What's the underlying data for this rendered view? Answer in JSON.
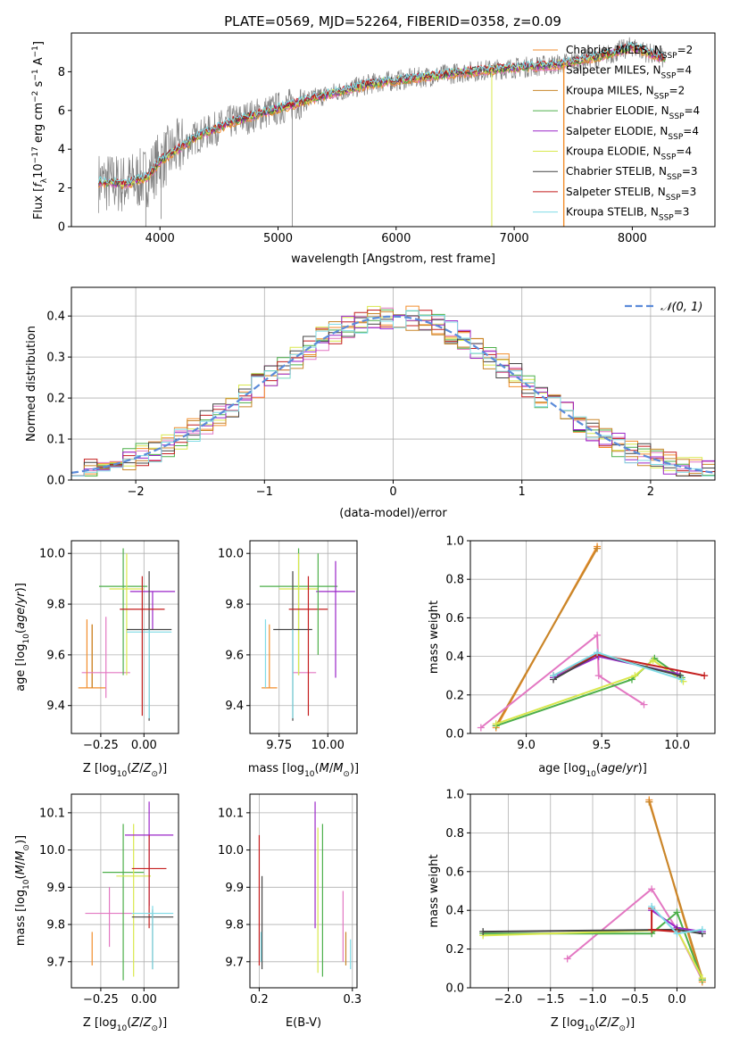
{
  "figure": {
    "title": "PLATE=0569, MJD=52264, FIBERID=0358, z=0.09"
  },
  "models": [
    {
      "name": "Chabrier MILES",
      "nssp": "2",
      "color": "#f28e2c"
    },
    {
      "name": "Salpeter MILES",
      "nssp": "4",
      "color": "#e377c2"
    },
    {
      "name": "Kroupa MILES",
      "nssp": "2",
      "color": "#c8862a"
    },
    {
      "name": "Chabrier ELODIE",
      "nssp": "4",
      "color": "#4daf4a"
    },
    {
      "name": "Salpeter ELODIE",
      "nssp": "4",
      "color": "#9b26c9"
    },
    {
      "name": "Kroupa ELODIE",
      "nssp": "4",
      "color": "#d9e84d"
    },
    {
      "name": "Chabrier STELIB",
      "nssp": "3",
      "color": "#444444"
    },
    {
      "name": "Salpeter STELIB",
      "nssp": "3",
      "color": "#c41e1e"
    },
    {
      "name": "Kroupa STELIB",
      "nssp": "3",
      "color": "#7fdbe6"
    }
  ],
  "chart_data": [
    {
      "id": "spectrum",
      "type": "line",
      "xlabel": "wavelength [Angstrom, rest frame]",
      "ylabel": "Flux [f_λ10^-17 erg cm^-2 s^-1 A^-1]",
      "xlim": [
        3250,
        8700
      ],
      "ylim": [
        0,
        10
      ],
      "xticks": [
        4000,
        5000,
        6000,
        7000,
        8000
      ],
      "yticks": [
        0,
        2,
        4,
        6,
        8
      ],
      "grid": false,
      "legend": "right",
      "data_color": "#808080",
      "continuum_points": {
        "x": [
          3500,
          3700,
          3900,
          4000,
          4300,
          4600,
          5000,
          5400,
          5800,
          6200,
          6600,
          7000,
          7400,
          7800,
          8000,
          8250
        ],
        "y": [
          2.3,
          2.2,
          2.6,
          3.4,
          4.6,
          5.4,
          6.1,
          6.8,
          7.4,
          7.7,
          8.0,
          8.2,
          8.4,
          8.9,
          9.3,
          8.7
        ]
      }
    },
    {
      "id": "residuals",
      "type": "step",
      "xlabel": "(data-model)/error",
      "ylabel": "Normed distribution",
      "xlim": [
        -2.5,
        2.5
      ],
      "ylim": [
        0,
        0.47
      ],
      "xticks": [
        -2,
        -1,
        0,
        1,
        2
      ],
      "yticks": [
        0.0,
        0.1,
        0.2,
        0.3,
        0.4
      ],
      "grid": true,
      "legend": "top-right",
      "reference_curve": {
        "name": "N(0,1)",
        "color": "#5b8bd9"
      },
      "bin_width": 0.1
    },
    {
      "id": "age-vs-Z",
      "type": "errorbar",
      "xlabel": "Z [log10(Z/Z⊙)]",
      "ylabel": "age [log10(age/yr)]",
      "xlim": [
        -0.42,
        0.2
      ],
      "ylim": [
        9.29,
        10.05
      ],
      "xticks": [
        -0.25,
        0.0
      ],
      "yticks": [
        9.4,
        9.6,
        9.8,
        10.0
      ],
      "grid": true,
      "points": [
        {
          "model": 0,
          "x": -0.3,
          "y": 9.47,
          "xerr": 0.08,
          "yerr": [
            9.47,
            9.72
          ]
        },
        {
          "model": 2,
          "x": -0.3,
          "y": 9.47,
          "xerr": 0.0,
          "yerr": [
            9.47,
            9.72
          ]
        },
        {
          "model": 1,
          "x": -0.22,
          "y": 9.53,
          "xerr": 0.14,
          "yerr": [
            9.43,
            9.75
          ]
        },
        {
          "model": 3,
          "x": -0.12,
          "y": 9.87,
          "xerr": 0.14,
          "yerr": [
            9.52,
            10.02
          ]
        },
        {
          "model": 5,
          "x": -0.1,
          "y": 9.86,
          "xerr": 0.1,
          "yerr": [
            9.52,
            10.0
          ]
        },
        {
          "model": 4,
          "x": 0.05,
          "y": 9.85,
          "xerr": 0.13,
          "yerr": [
            9.7,
            9.85
          ]
        },
        {
          "model": 6,
          "x": 0.03,
          "y": 9.7,
          "xerr": 0.13,
          "yerr": [
            9.34,
            9.93
          ]
        },
        {
          "model": 8,
          "x": 0.03,
          "y": 9.69,
          "xerr": 0.13,
          "yerr": [
            9.35,
            9.7
          ]
        },
        {
          "model": 7,
          "x": -0.01,
          "y": 9.78,
          "xerr": 0.13,
          "yerr": [
            9.36,
            9.91
          ]
        },
        {
          "model": 0,
          "x": -0.33,
          "y": 9.66,
          "xerr": 0.0,
          "yerr": [
            9.47,
            9.74
          ]
        }
      ]
    },
    {
      "id": "age-vs-mass",
      "type": "errorbar",
      "xlabel": "mass [log10(M/M⊙)]",
      "ylabel": "",
      "xlim": [
        9.6,
        10.15
      ],
      "ylim": [
        9.29,
        10.05
      ],
      "xticks": [
        9.75,
        10.0
      ],
      "yticks": [
        9.4,
        9.6,
        9.8,
        10.0
      ],
      "grid": true,
      "points": [
        {
          "model": 0,
          "x": 9.7,
          "y": 9.47,
          "xerr": 0.04,
          "yerr": [
            9.47,
            9.72
          ]
        },
        {
          "model": 8,
          "x": 9.68,
          "y": 9.7,
          "xerr": 0.0,
          "yerr": [
            9.47,
            9.74
          ]
        },
        {
          "model": 1,
          "x": 9.88,
          "y": 9.53,
          "xerr": 0.06,
          "yerr": [
            9.53,
            9.53
          ]
        },
        {
          "model": 3,
          "x": 9.85,
          "y": 9.87,
          "xerr": 0.2,
          "yerr": [
            9.52,
            10.02
          ]
        },
        {
          "model": 5,
          "x": 9.85,
          "y": 9.86,
          "xerr": 0.1,
          "yerr": [
            9.52,
            10.0
          ]
        },
        {
          "model": 4,
          "x": 10.04,
          "y": 9.85,
          "xerr": 0.1,
          "yerr": [
            9.51,
            9.97
          ]
        },
        {
          "model": 6,
          "x": 9.82,
          "y": 9.7,
          "xerr": 0.1,
          "yerr": [
            9.34,
            9.93
          ]
        },
        {
          "model": 8,
          "x": 9.82,
          "y": 9.69,
          "xerr": 0.0,
          "yerr": [
            9.35,
            9.7
          ]
        },
        {
          "model": 7,
          "x": 9.9,
          "y": 9.78,
          "xerr": 0.1,
          "yerr": [
            9.36,
            9.91
          ]
        },
        {
          "model": 3,
          "x": 9.95,
          "y": 9.86,
          "xerr": 0.0,
          "yerr": [
            9.6,
            10.0
          ]
        }
      ]
    },
    {
      "id": "weight-vs-age",
      "type": "line",
      "xlabel": "age [log10(age/yr)]",
      "ylabel": "mass weight",
      "xlim": [
        8.63,
        10.25
      ],
      "ylim": [
        0,
        1
      ],
      "xticks": [
        9.0,
        9.5,
        10.0
      ],
      "yticks": [
        0.0,
        0.2,
        0.4,
        0.6,
        0.8,
        1.0
      ],
      "grid": true,
      "series": [
        {
          "model": 0,
          "x": [
            8.8,
            9.47
          ],
          "y": [
            0.03,
            0.97
          ]
        },
        {
          "model": 2,
          "x": [
            8.8,
            9.47
          ],
          "y": [
            0.04,
            0.96
          ]
        },
        {
          "model": 1,
          "x": [
            8.7,
            9.47,
            9.48,
            9.78
          ],
          "y": [
            0.03,
            0.51,
            0.3,
            0.15
          ]
        },
        {
          "model": 3,
          "x": [
            8.8,
            9.7,
            9.85,
            10.03
          ],
          "y": [
            0.04,
            0.28,
            0.39,
            0.29
          ]
        },
        {
          "model": 5,
          "x": [
            8.8,
            9.72,
            9.84,
            10.04
          ],
          "y": [
            0.05,
            0.3,
            0.38,
            0.27
          ]
        },
        {
          "model": 4,
          "x": [
            9.18,
            9.48,
            10.0
          ],
          "y": [
            0.29,
            0.4,
            0.31
          ]
        },
        {
          "model": 6,
          "x": [
            9.18,
            9.47,
            10.02
          ],
          "y": [
            0.28,
            0.41,
            0.3
          ]
        },
        {
          "model": 7,
          "x": [
            9.18,
            9.47,
            10.18
          ],
          "y": [
            0.3,
            0.41,
            0.3
          ]
        },
        {
          "model": 8,
          "x": [
            9.18,
            9.47,
            10.03
          ],
          "y": [
            0.3,
            0.42,
            0.28
          ]
        }
      ]
    },
    {
      "id": "mass-vs-Z",
      "type": "errorbar",
      "xlabel": "Z [log10(Z/Z⊙)]",
      "ylabel": "mass [log10(M/M⊙)]",
      "xlim": [
        -0.42,
        0.2
      ],
      "ylim": [
        9.63,
        10.15
      ],
      "xticks": [
        -0.25,
        0.0
      ],
      "yticks": [
        9.7,
        9.8,
        9.9,
        10.0,
        10.1
      ],
      "grid": true,
      "points": [
        {
          "model": 0,
          "x": -0.3,
          "y": 9.69,
          "xerr": 0.0,
          "yerr": [
            9.69,
            9.78
          ]
        },
        {
          "model": 2,
          "x": -0.33,
          "y": 9.69,
          "xerr": 0.0,
          "yerr": [
            9.69,
            9.69
          ]
        },
        {
          "model": 8,
          "x": -0.33,
          "y": 9.68,
          "xerr": 0.0,
          "yerr": [
            9.68,
            9.68
          ]
        },
        {
          "model": 1,
          "x": -0.2,
          "y": 9.83,
          "xerr": 0.14,
          "yerr": [
            9.74,
            9.9
          ]
        },
        {
          "model": 3,
          "x": -0.12,
          "y": 9.94,
          "xerr": 0.12,
          "yerr": [
            9.65,
            10.07
          ]
        },
        {
          "model": 5,
          "x": -0.06,
          "y": 9.93,
          "xerr": 0.1,
          "yerr": [
            9.66,
            10.07
          ]
        },
        {
          "model": 4,
          "x": 0.03,
          "y": 10.04,
          "xerr": 0.14,
          "yerr": [
            9.85,
            10.13
          ]
        },
        {
          "model": 7,
          "x": 0.03,
          "y": 9.95,
          "xerr": 0.1,
          "yerr": [
            9.79,
            10.04
          ]
        },
        {
          "model": 6,
          "x": 0.05,
          "y": 9.82,
          "xerr": 0.12,
          "yerr": [
            9.68,
            9.84
          ]
        },
        {
          "model": 8,
          "x": 0.05,
          "y": 9.83,
          "xerr": 0.12,
          "yerr": [
            9.68,
            9.85
          ]
        }
      ]
    },
    {
      "id": "mass-vs-EBV",
      "type": "errorbar",
      "xlabel": "E(B-V)",
      "ylabel": "",
      "xlim": [
        0.19,
        0.305
      ],
      "ylim": [
        9.63,
        10.15
      ],
      "xticks": [
        0.2,
        0.3
      ],
      "yticks": [
        9.7,
        9.8,
        9.9,
        10.0,
        10.1
      ],
      "grid": true,
      "points": [
        {
          "model": 7,
          "x": 0.2,
          "y": 9.8,
          "yerr": [
            9.69,
            10.04
          ]
        },
        {
          "model": 6,
          "x": 0.203,
          "y": 9.8,
          "yerr": [
            9.68,
            9.93
          ]
        },
        {
          "model": 8,
          "x": 0.202,
          "y": 9.72,
          "yerr": [
            9.7,
            9.78
          ]
        },
        {
          "model": 4,
          "x": 0.26,
          "y": 9.9,
          "yerr": [
            9.79,
            10.13
          ]
        },
        {
          "model": 5,
          "x": 0.263,
          "y": 9.8,
          "yerr": [
            9.67,
            10.06
          ]
        },
        {
          "model": 3,
          "x": 0.268,
          "y": 9.9,
          "yerr": [
            9.66,
            10.07
          ]
        },
        {
          "model": 1,
          "x": 0.29,
          "y": 9.78,
          "yerr": [
            9.7,
            9.89
          ]
        },
        {
          "model": 2,
          "x": 0.293,
          "y": 9.73,
          "yerr": [
            9.69,
            9.78
          ]
        },
        {
          "model": 8,
          "x": 0.298,
          "y": 9.72,
          "yerr": [
            9.68,
            9.76
          ]
        }
      ]
    },
    {
      "id": "weight-vs-Z",
      "type": "line",
      "xlabel": "Z [log10(Z/Z⊙)]",
      "ylabel": "mass weight",
      "xlim": [
        -2.45,
        0.45
      ],
      "ylim": [
        0,
        1
      ],
      "xticks": [
        -2.0,
        -1.5,
        -1.0,
        -0.5,
        0.0
      ],
      "yticks": [
        0.0,
        0.2,
        0.4,
        0.6,
        0.8,
        1.0
      ],
      "grid": true,
      "series": [
        {
          "model": 0,
          "x": [
            -0.33,
            0.3
          ],
          "y": [
            0.97,
            0.03
          ]
        },
        {
          "model": 2,
          "x": [
            -0.33,
            0.3
          ],
          "y": [
            0.96,
            0.05
          ]
        },
        {
          "model": 1,
          "x": [
            -1.3,
            -0.3,
            0.0,
            0.3
          ],
          "y": [
            0.15,
            0.51,
            0.3,
            0.04
          ]
        },
        {
          "model": 3,
          "x": [
            -2.3,
            -0.3,
            0.0,
            0.3
          ],
          "y": [
            0.28,
            0.28,
            0.39,
            0.04
          ]
        },
        {
          "model": 5,
          "x": [
            -2.3,
            0.0,
            0.3
          ],
          "y": [
            0.27,
            0.3,
            0.05
          ]
        },
        {
          "model": 4,
          "x": [
            -0.3,
            0.0,
            0.3
          ],
          "y": [
            0.4,
            0.31,
            0.29
          ]
        },
        {
          "model": 6,
          "x": [
            -2.3,
            0.0,
            0.3
          ],
          "y": [
            0.29,
            0.3,
            0.28
          ]
        },
        {
          "model": 7,
          "x": [
            -0.3,
            -0.3,
            0.0
          ],
          "y": [
            0.41,
            0.3,
            0.29
          ]
        },
        {
          "model": 8,
          "x": [
            -0.3,
            0.0,
            0.3
          ],
          "y": [
            0.42,
            0.28,
            0.3
          ]
        }
      ]
    }
  ]
}
